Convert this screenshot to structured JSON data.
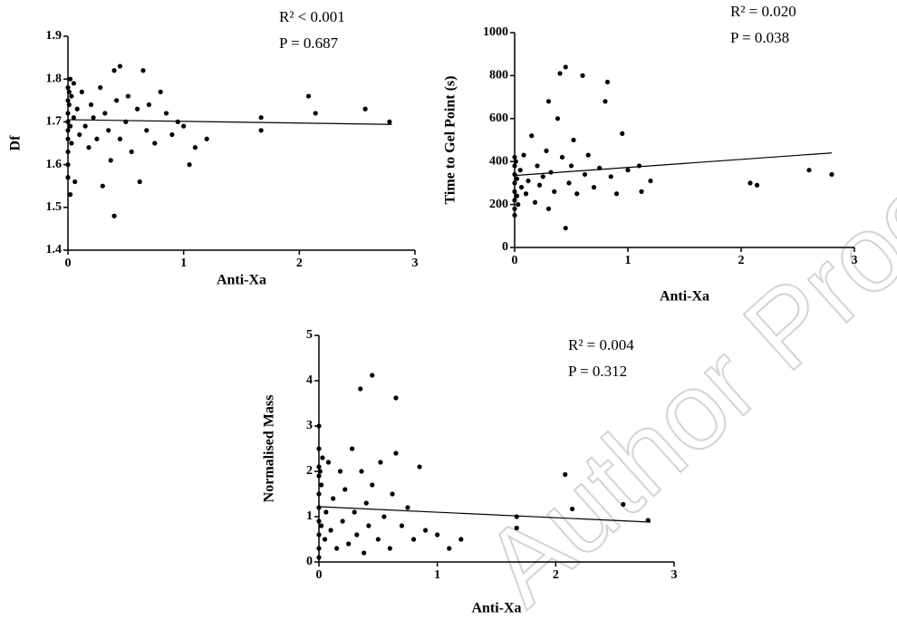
{
  "watermark": "Author Proof",
  "chart_data": [
    {
      "type": "scatter",
      "x_label": "Anti-Xa",
      "y_label": "Df",
      "annotations": [
        "R² < 0.001",
        "P = 0.687"
      ],
      "xlim": [
        0,
        3
      ],
      "xticks": [
        0,
        1,
        2,
        3
      ],
      "ylim": [
        1.4,
        1.9
      ],
      "yticks": [
        {
          "value": 1.4,
          "label": "1.4"
        },
        1.5,
        1.6,
        1.7,
        1.8,
        1.9
      ],
      "grid": false,
      "color": "#000000",
      "x": [
        0,
        0,
        0,
        0,
        0,
        0,
        0,
        0,
        0,
        0.01,
        0.01,
        0.02,
        0.02,
        0.02,
        0.03,
        0.03,
        0.05,
        0.05,
        0.06,
        0.08,
        0.1,
        0.12,
        0.15,
        0.18,
        0.2,
        0.22,
        0.25,
        0.28,
        0.3,
        0.32,
        0.35,
        0.37,
        0.4,
        0.4,
        0.42,
        0.45,
        0.45,
        0.5,
        0.52,
        0.55,
        0.6,
        0.62,
        0.65,
        0.68,
        0.7,
        0.75,
        0.8,
        0.85,
        0.9,
        0.95,
        1.0,
        1.05,
        1.1,
        1.2,
        1.67,
        1.67,
        2.08,
        2.14,
        2.57,
        2.78
      ],
      "values": [
        1.78,
        1.75,
        1.72,
        1.7,
        1.68,
        1.66,
        1.63,
        1.6,
        1.57,
        1.77,
        1.74,
        1.8,
        1.69,
        1.53,
        1.76,
        1.65,
        1.79,
        1.71,
        1.56,
        1.73,
        1.67,
        1.77,
        1.69,
        1.64,
        1.74,
        1.71,
        1.66,
        1.78,
        1.55,
        1.72,
        1.68,
        1.61,
        1.82,
        1.48,
        1.75,
        1.83,
        1.66,
        1.7,
        1.76,
        1.63,
        1.73,
        1.56,
        1.82,
        1.68,
        1.74,
        1.65,
        1.77,
        1.72,
        1.67,
        1.7,
        1.69,
        1.6,
        1.64,
        1.66,
        1.71,
        1.68,
        1.76,
        1.72,
        1.73,
        1.7
      ],
      "trendline": {
        "x": [
          0,
          2.8
        ],
        "values": [
          1.705,
          1.694
        ]
      }
    },
    {
      "type": "scatter",
      "x_label": "Anti-Xa",
      "y_label": "Time to Gel Point (s)",
      "annotations": [
        "R² = 0.020",
        "P = 0.038"
      ],
      "xlim": [
        0,
        3
      ],
      "xticks": [
        0,
        1,
        2,
        3
      ],
      "ylim": [
        0,
        1000
      ],
      "yticks": [
        0,
        200,
        400,
        600,
        800,
        1000
      ],
      "grid": false,
      "color": "#000000",
      "x": [
        0,
        0,
        0,
        0,
        0,
        0,
        0,
        0,
        0.01,
        0.02,
        0.02,
        0.03,
        0.05,
        0.06,
        0.08,
        0.1,
        0.12,
        0.15,
        0.18,
        0.2,
        0.22,
        0.25,
        0.28,
        0.3,
        0.3,
        0.32,
        0.35,
        0.38,
        0.4,
        0.42,
        0.45,
        0.45,
        0.48,
        0.5,
        0.52,
        0.55,
        0.6,
        0.62,
        0.65,
        0.7,
        0.75,
        0.8,
        0.82,
        0.85,
        0.9,
        0.95,
        1.0,
        1.1,
        1.12,
        1.2,
        2.08,
        2.14,
        2.6,
        2.8
      ],
      "values": [
        420,
        380,
        340,
        300,
        260,
        220,
        180,
        150,
        400,
        320,
        240,
        200,
        360,
        280,
        430,
        250,
        310,
        520,
        210,
        380,
        290,
        330,
        450,
        680,
        180,
        350,
        260,
        600,
        810,
        420,
        840,
        90,
        300,
        380,
        500,
        250,
        800,
        340,
        430,
        280,
        370,
        680,
        770,
        330,
        250,
        530,
        360,
        380,
        260,
        310,
        300,
        290,
        360,
        340
      ],
      "trendline": {
        "x": [
          0,
          2.8
        ],
        "values": [
          335,
          440
        ]
      }
    },
    {
      "type": "scatter",
      "x_label": "Anti-Xa",
      "y_label": "Normalised Mass",
      "annotations": [
        "R² = 0.004",
        "P = 0.312"
      ],
      "xlim": [
        0,
        3
      ],
      "xticks": [
        0,
        1,
        2,
        3
      ],
      "ylim": [
        0,
        5
      ],
      "yticks": [
        0,
        1,
        2,
        3,
        4,
        5
      ],
      "grid": false,
      "color": "#000000",
      "x": [
        0,
        0,
        0,
        0,
        0,
        0,
        0,
        0,
        0,
        0,
        0.01,
        0.02,
        0.02,
        0.03,
        0.05,
        0.06,
        0.08,
        0.1,
        0.12,
        0.15,
        0.18,
        0.2,
        0.22,
        0.25,
        0.28,
        0.3,
        0.32,
        0.35,
        0.36,
        0.38,
        0.4,
        0.42,
        0.45,
        0.45,
        0.5,
        0.52,
        0.55,
        0.6,
        0.62,
        0.65,
        0.65,
        0.7,
        0.75,
        0.8,
        0.85,
        0.9,
        1.0,
        1.1,
        1.2,
        1.67,
        1.67,
        2.08,
        2.14,
        2.57,
        2.78
      ],
      "values": [
        3.0,
        2.5,
        2.1,
        1.9,
        1.5,
        1.2,
        0.9,
        0.6,
        0.3,
        0.1,
        2.0,
        1.7,
        0.8,
        2.3,
        0.5,
        1.1,
        2.2,
        0.7,
        1.4,
        0.3,
        2.0,
        0.9,
        1.6,
        0.4,
        2.5,
        1.1,
        0.6,
        3.82,
        2.0,
        0.2,
        1.3,
        0.8,
        4.12,
        1.7,
        0.5,
        2.2,
        1.0,
        0.3,
        1.5,
        3.62,
        2.4,
        0.8,
        1.2,
        0.5,
        2.1,
        0.7,
        0.6,
        0.3,
        0.5,
        1.0,
        0.75,
        1.93,
        1.17,
        1.27,
        0.92
      ],
      "trendline": {
        "x": [
          0,
          2.8
        ],
        "values": [
          1.22,
          0.88
        ]
      }
    }
  ]
}
